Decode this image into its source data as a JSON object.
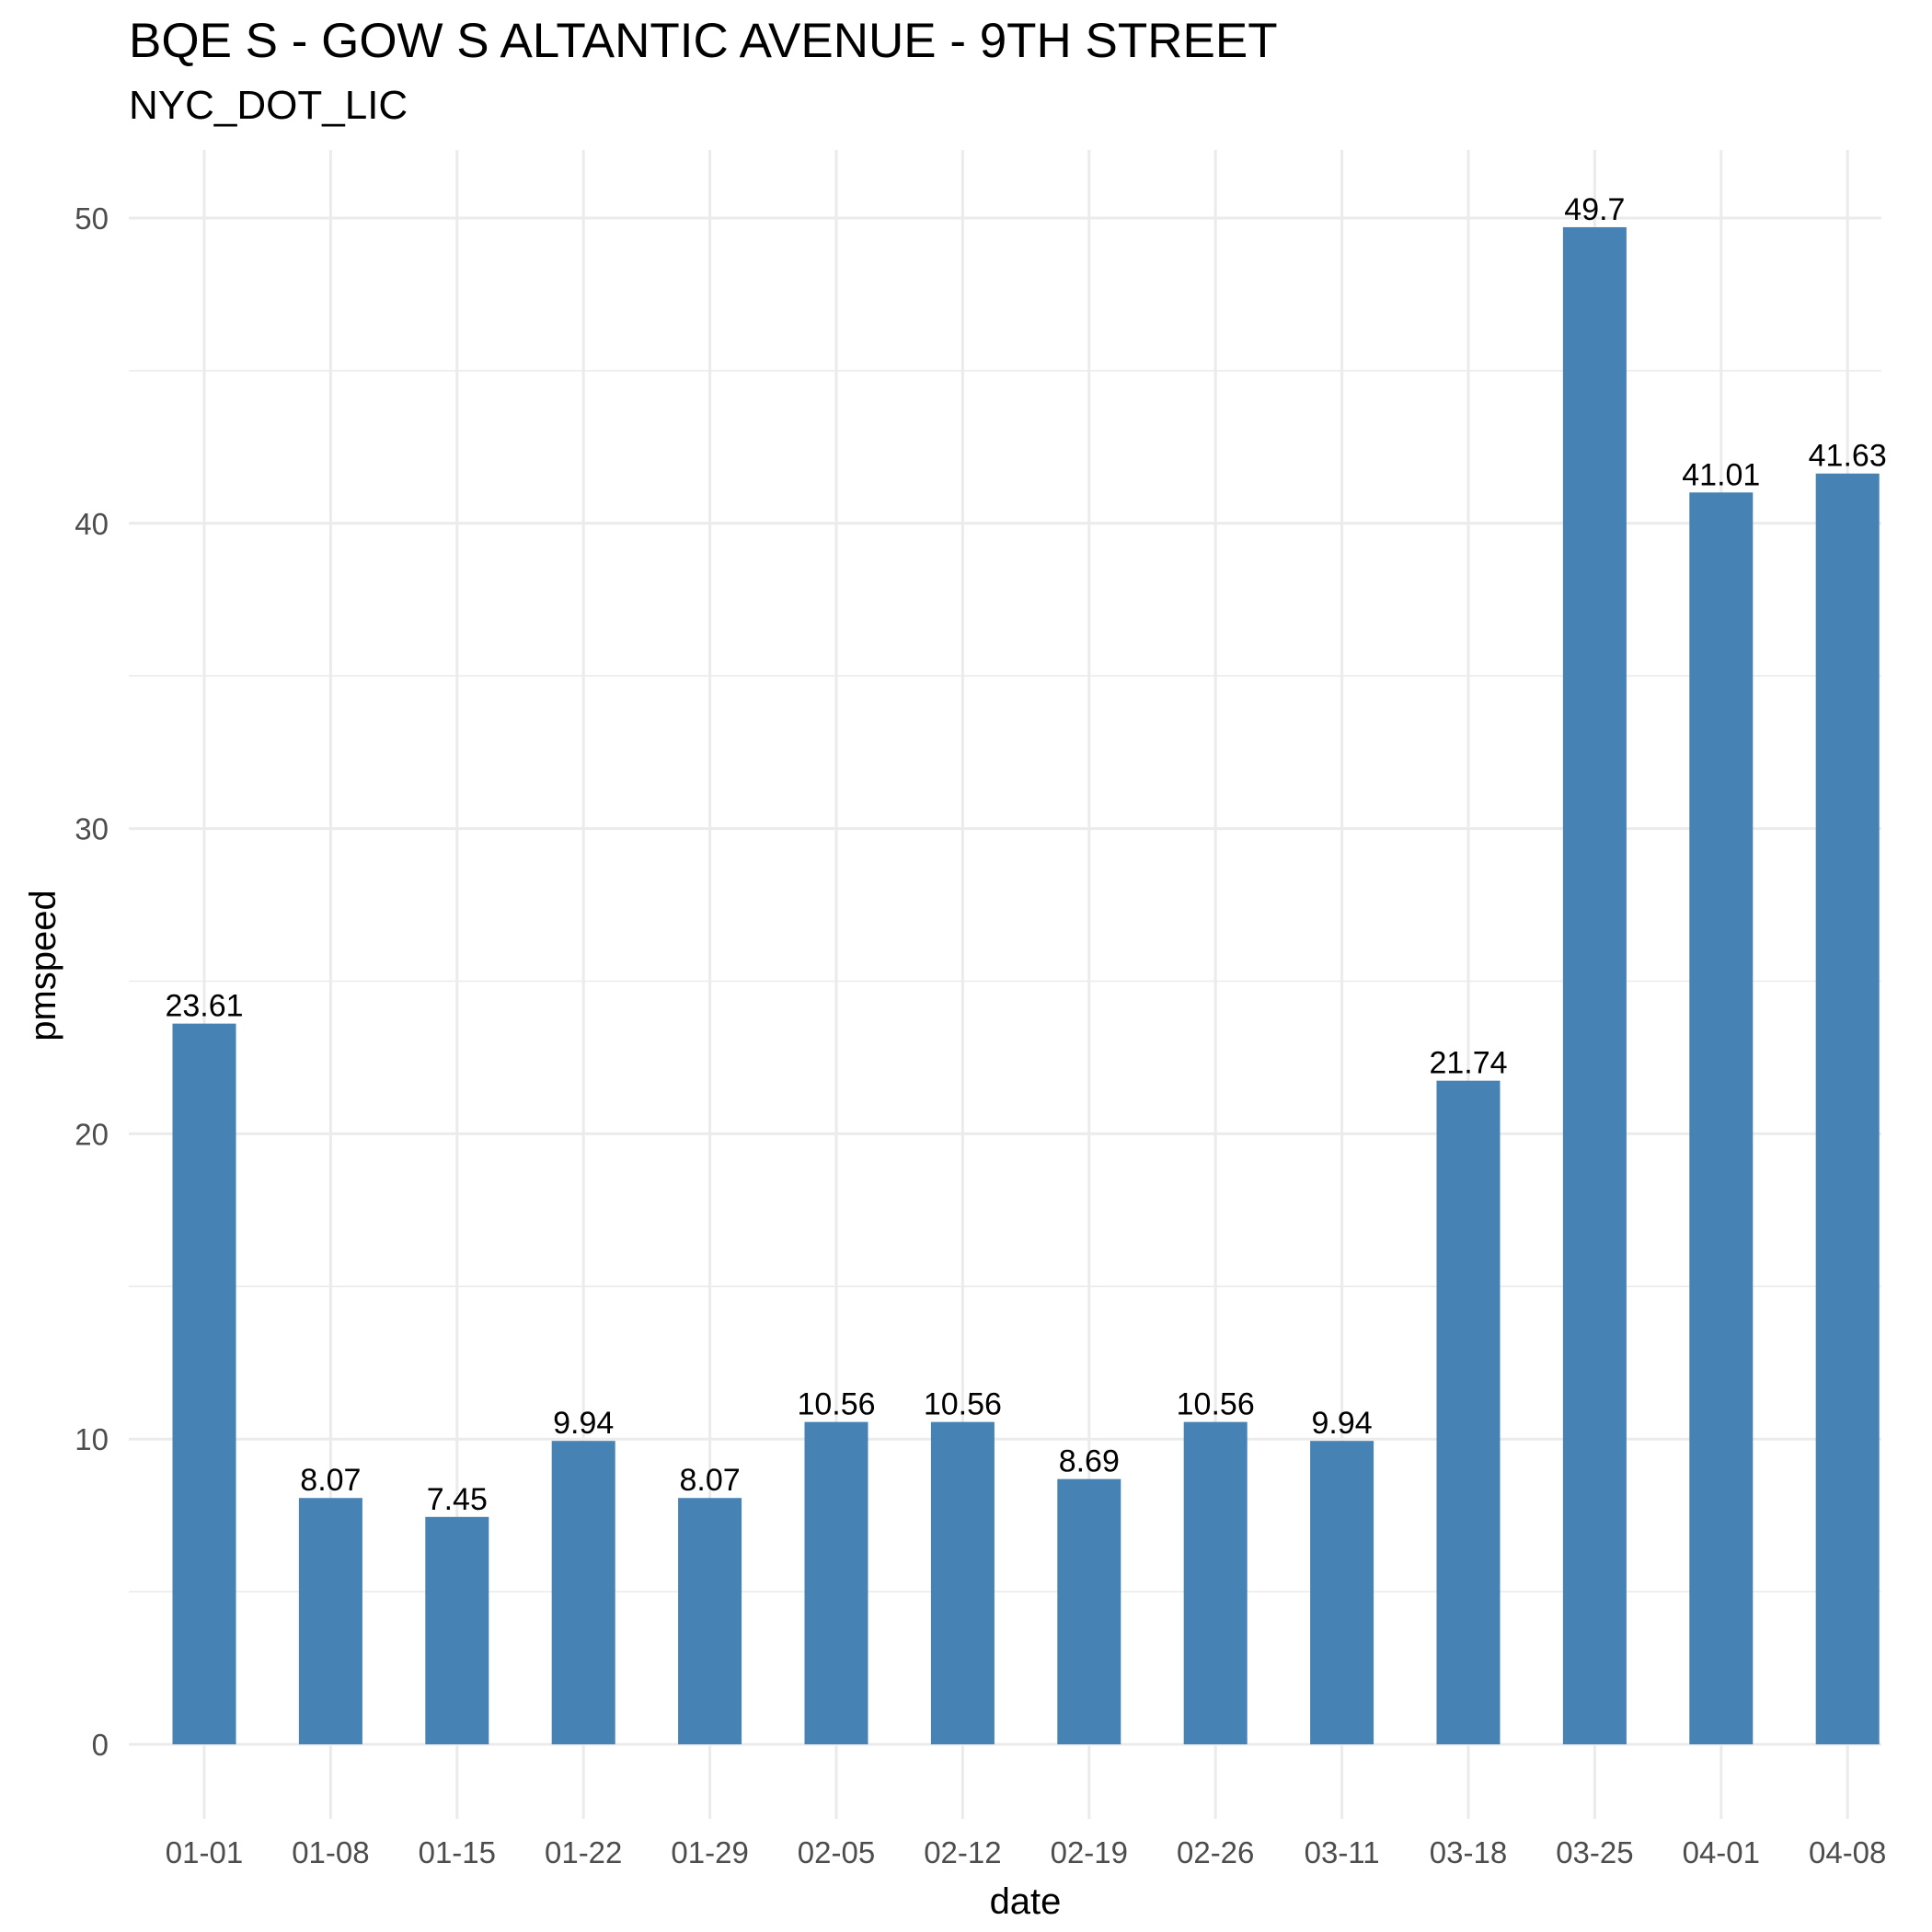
{
  "chart_data": {
    "type": "bar",
    "title": "BQE S - GOW S ALTANTIC AVENUE - 9TH STREET",
    "subtitle": "NYC_DOT_LIC",
    "xlabel": "date",
    "ylabel": "pmspeed",
    "categories": [
      "01-01",
      "01-08",
      "01-15",
      "01-22",
      "01-29",
      "02-05",
      "02-12",
      "02-19",
      "02-26",
      "03-11",
      "03-18",
      "03-25",
      "04-01",
      "04-08"
    ],
    "values": [
      23.61,
      8.07,
      7.45,
      9.94,
      8.07,
      10.56,
      10.56,
      8.69,
      10.56,
      9.94,
      21.74,
      49.7,
      41.01,
      41.63
    ],
    "data_labels": [
      "23.61",
      "8.07",
      "7.45",
      "9.94",
      "8.07",
      "10.56",
      "10.56",
      "8.69",
      "10.56",
      "9.94",
      "21.74",
      "49.7",
      "41.01",
      "41.63"
    ],
    "yticks": [
      0,
      10,
      20,
      30,
      40,
      50
    ],
    "ylim": [
      0,
      52.2
    ],
    "grid": true,
    "legend": "none",
    "bar_color": "#4682B4",
    "grid_color": "#EBEBEB"
  }
}
